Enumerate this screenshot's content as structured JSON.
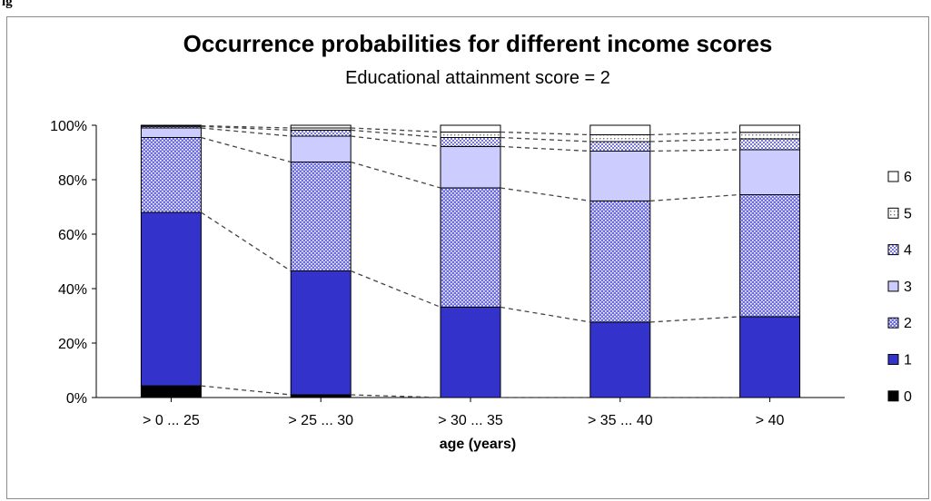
{
  "figure_label": "ig",
  "chart_data": {
    "type": "bar",
    "stacked": true,
    "title": "Occurrence probabilities for different income scores",
    "subtitle": "Educational attainment score = 2",
    "xlabel": "age (years)",
    "ylabel": "",
    "ylim": [
      0,
      100
    ],
    "yticks": [
      "0%",
      "20%",
      "40%",
      "60%",
      "80%",
      "100%"
    ],
    "categories": [
      "> 0 ... 25",
      "> 25 ... 30",
      "> 30 ... 35",
      "> 35 ... 40",
      "> 40"
    ],
    "series": [
      {
        "name": "0",
        "values": [
          4.3,
          1.0,
          0.0,
          0.0,
          0.0
        ],
        "color": "#000000",
        "pattern": "solid"
      },
      {
        "name": "1",
        "values": [
          63.7,
          45.5,
          33.2,
          27.7,
          29.7
        ],
        "color": "#3333cc",
        "pattern": "solid"
      },
      {
        "name": "2",
        "values": [
          27.5,
          40.0,
          43.8,
          44.5,
          44.8
        ],
        "color": "#6666dd",
        "pattern": "dots"
      },
      {
        "name": "3",
        "values": [
          3.5,
          9.5,
          15.2,
          18.3,
          16.5
        ],
        "color": "#ccccff",
        "pattern": "solid"
      },
      {
        "name": "4",
        "values": [
          0.6,
          2.2,
          3.3,
          3.5,
          4.0
        ],
        "color": "#8888dd",
        "pattern": "dots-light"
      },
      {
        "name": "5",
        "values": [
          0.2,
          0.8,
          2.0,
          2.5,
          2.4
        ],
        "color": "#ffffff",
        "pattern": "dots-sparse"
      },
      {
        "name": "6",
        "values": [
          0.2,
          1.0,
          2.5,
          3.5,
          2.6
        ],
        "color": "#ffffff",
        "pattern": "solid"
      }
    ],
    "legend_position": "right",
    "connector_lines": "dashed",
    "grid": false
  }
}
